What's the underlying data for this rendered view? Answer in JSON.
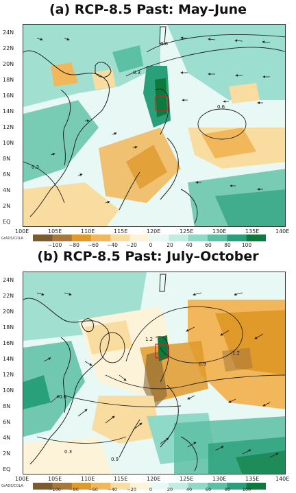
{
  "panels": [
    {
      "title": "(a)  RCP-8.5 Past: May–June",
      "contour_labels": [
        "0.3",
        "0.6",
        "0.6",
        "0.3"
      ]
    },
    {
      "title": "(b)  RCP-8.5 Past: July–October",
      "contour_labels": [
        "1.2",
        "1.2",
        "0.9",
        "0.6",
        "0.3",
        "0.9"
      ]
    }
  ],
  "axes": {
    "x_ticks": [
      "100E",
      "105E",
      "110E",
      "115E",
      "120E",
      "125E",
      "130E",
      "135E",
      "140E"
    ],
    "y_ticks": [
      "EQ",
      "2N",
      "4N",
      "6N",
      "8N",
      "10N",
      "12N",
      "14N",
      "16N",
      "18N",
      "20N",
      "22N",
      "24N"
    ]
  },
  "colorbar": {
    "labels": [
      "−100",
      "−80",
      "−60",
      "−40",
      "−20",
      "0",
      "20",
      "40",
      "60",
      "80",
      "100"
    ],
    "colors": [
      "#7a5a2e",
      "#a8773a",
      "#e09a2a",
      "#f2b75a",
      "#f9dca0",
      "#fdf3d8",
      "#e8f8f4",
      "#c2ece2",
      "#8ed9c8",
      "#5cc0a4",
      "#2aa07a",
      "#0b7a3c"
    ]
  },
  "credit": "GrADS/COLA"
}
